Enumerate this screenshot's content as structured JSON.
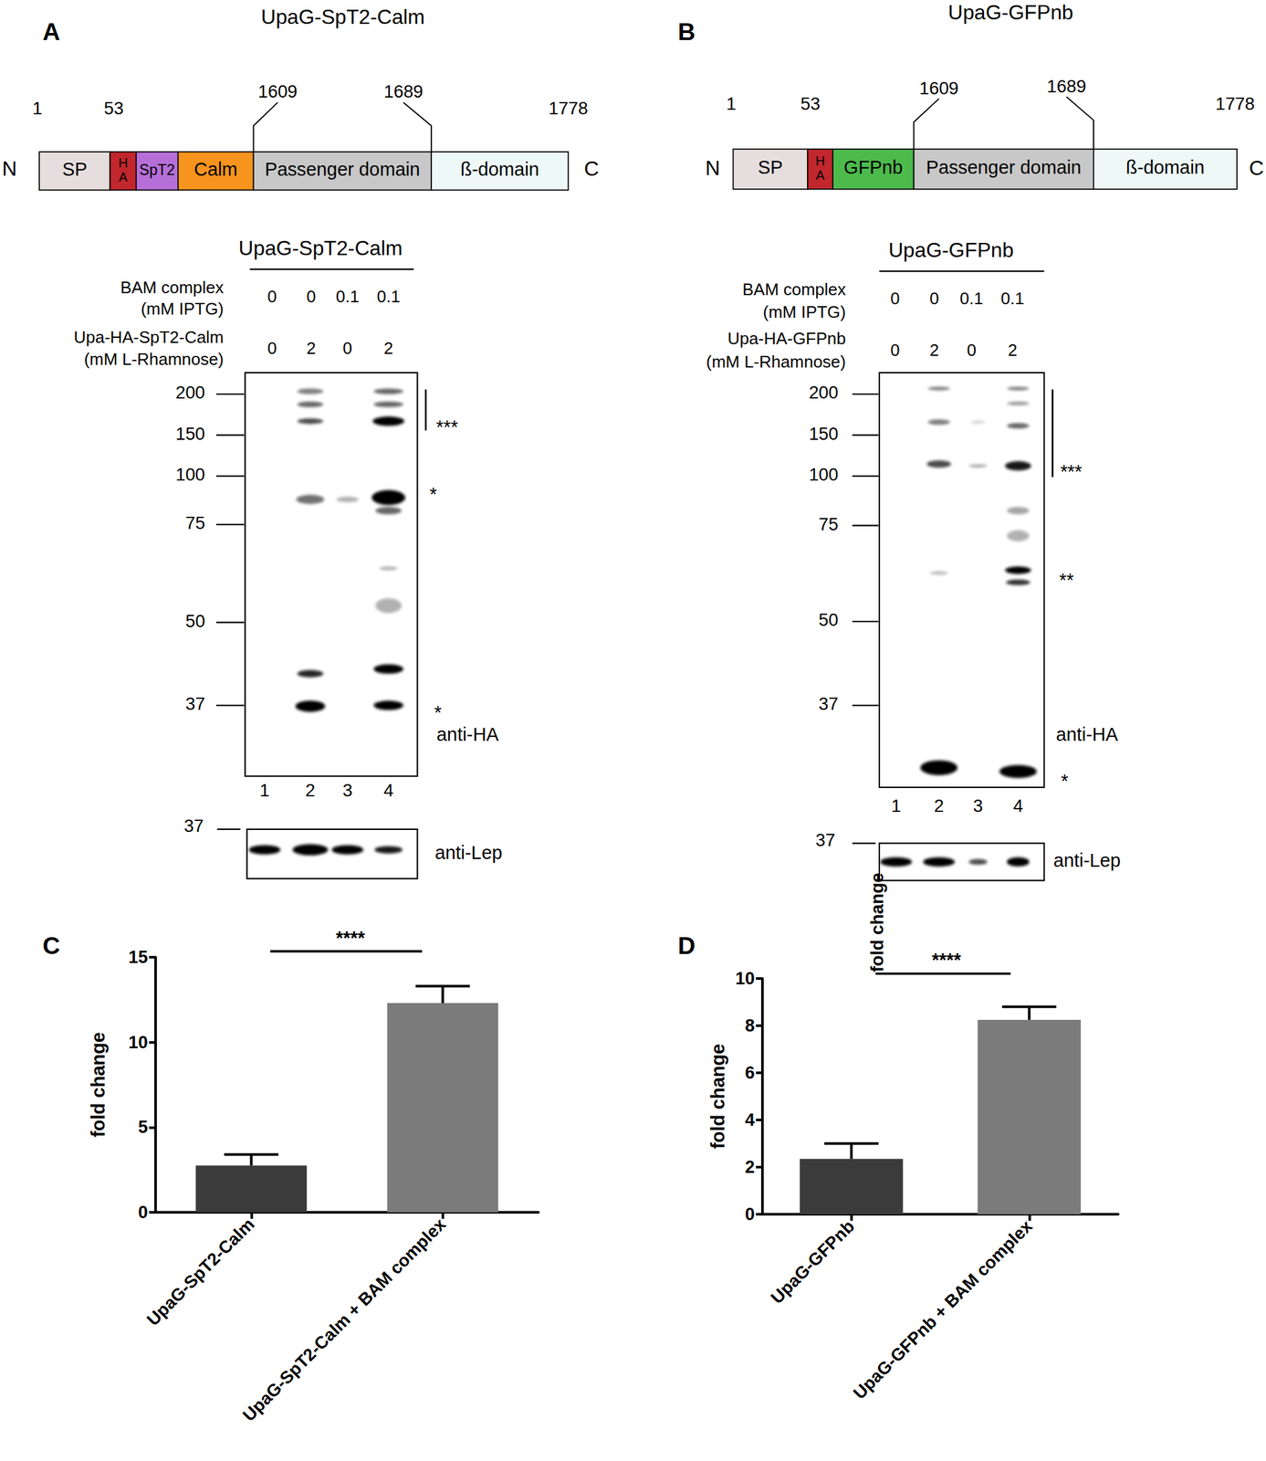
{
  "figure": {
    "A": {
      "letter": "A",
      "title": "UpaG-SpT2-Calm",
      "positions": [
        1,
        53,
        1609,
        1689,
        1778
      ],
      "ends": [
        "N",
        "C"
      ],
      "domains": [
        {
          "label": "SP",
          "color": "#e6dede"
        },
        {
          "label": "HA",
          "color": "#c1272d"
        },
        {
          "label": "SpT2",
          "color": "#b66fd8"
        },
        {
          "label": "Calm",
          "color": "#f7941d"
        },
        {
          "label": "Passenger domain",
          "color": "#c8c8c8"
        },
        {
          "label": "ß-domain",
          "color": "#eef8f7"
        }
      ],
      "blot": {
        "title": "UpaG-SpT2-Calm",
        "conditions": [
          {
            "label": "BAM complex",
            "unit": "(mM IPTG)",
            "values": [
              0,
              0,
              0.1,
              0.1
            ]
          },
          {
            "label": "Upa-HA-SpT2-Calm",
            "unit": "(mM L-Rhamnose)",
            "values": [
              0,
              2,
              0,
              2
            ]
          }
        ],
        "markers": [
          200,
          150,
          100,
          75,
          50,
          37
        ],
        "marks": [
          "***",
          "*",
          "*"
        ],
        "antibody": "anti-HA",
        "lanes": [
          1,
          2,
          3,
          4
        ],
        "loading_marker": 37,
        "loading_antibody": "anti-Lep"
      }
    },
    "B": {
      "letter": "B",
      "title": "UpaG-GFPnb",
      "positions": [
        1,
        53,
        1609,
        1689,
        1778
      ],
      "ends": [
        "N",
        "C"
      ],
      "domains": [
        {
          "label": "SP",
          "color": "#e6dede"
        },
        {
          "label": "HA",
          "color": "#c1272d"
        },
        {
          "label": "GFPnb",
          "color": "#4cbb4c"
        },
        {
          "label": "Passenger domain",
          "color": "#c8c8c8"
        },
        {
          "label": "ß-domain",
          "color": "#eef8f7"
        }
      ],
      "blot": {
        "title": "UpaG-GFPnb",
        "conditions": [
          {
            "label": "BAM complex",
            "unit": "(mM IPTG)",
            "values": [
              0,
              0,
              0.1,
              0.1
            ]
          },
          {
            "label": "Upa-HA-GFPnb",
            "unit": "(mM L-Rhamnose)",
            "values": [
              0,
              2,
              0,
              2
            ]
          }
        ],
        "markers": [
          200,
          150,
          100,
          75,
          50,
          37
        ],
        "marks": [
          "***",
          "**",
          "*"
        ],
        "antibody": "anti-HA",
        "lanes": [
          1,
          2,
          3,
          4
        ],
        "loading_marker": 37,
        "loading_antibody": "anti-Lep"
      }
    }
  },
  "chart_data": [
    {
      "type": "bar",
      "title": "C",
      "y_label": "fold change",
      "categories": [
        "UpaG-SpT2-Calm",
        "UpaG-SpT2-Calm + BAM complex"
      ],
      "values": [
        2.75,
        12.3
      ],
      "errors": [
        0.65,
        1.0
      ],
      "colors": [
        "#3b3b3b",
        "#7b7b7b"
      ],
      "ylim": [
        0,
        15
      ],
      "yticks": [
        0,
        5,
        10,
        15
      ],
      "grid": false,
      "annotations": [
        "****"
      ]
    },
    {
      "type": "bar",
      "title": "D",
      "y_label": "fold change",
      "categories": [
        "UpaG-GFPnb",
        "UpaG-GFPnb + BAM complex"
      ],
      "values": [
        2.35,
        8.25
      ],
      "errors": [
        0.65,
        0.55
      ],
      "colors": [
        "#3b3b3b",
        "#7b7b7b"
      ],
      "ylim": [
        0,
        10
      ],
      "yticks": [
        0,
        2,
        4,
        6,
        8,
        10
      ],
      "grid": false,
      "annotations": [
        "****",
        "fold change"
      ]
    }
  ]
}
